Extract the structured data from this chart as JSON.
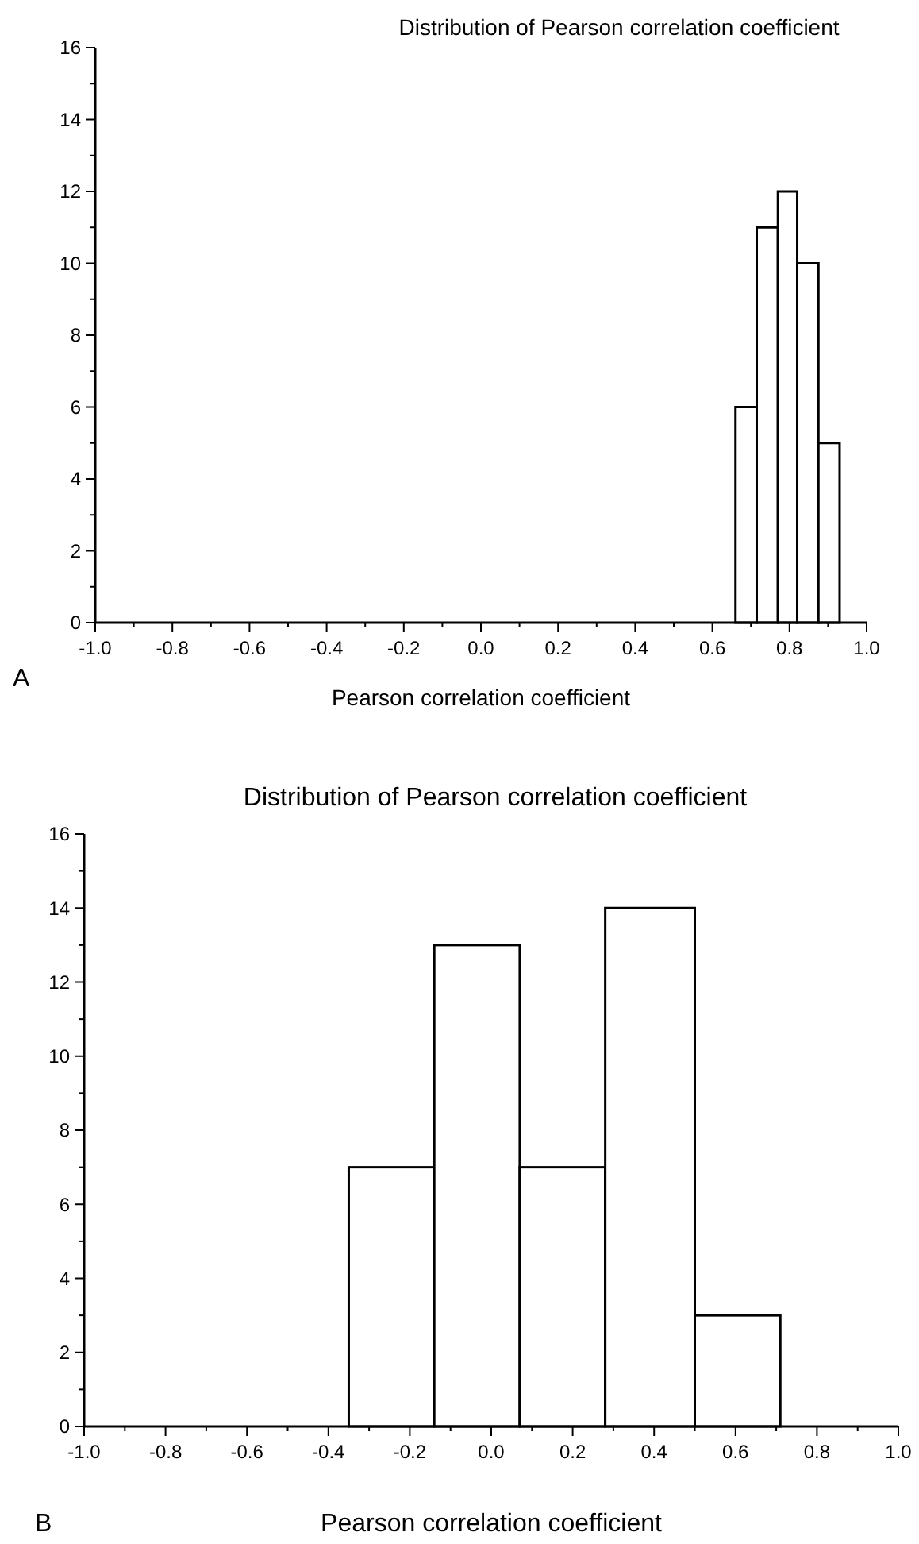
{
  "chart_data": [
    {
      "type": "histogram",
      "title": "Distribution of Pearson correlation coefficient",
      "xlabel": "Pearson correlation coefficient",
      "annotations": [
        "A"
      ],
      "bins": [
        0.66,
        0.715,
        0.77,
        0.82,
        0.875,
        0.93
      ],
      "values": [
        6,
        11,
        12,
        10,
        5
      ],
      "color": "#ffffff",
      "grid": false,
      "xlim": [
        -1,
        1
      ],
      "xticks": [
        {
          "value": -1,
          "label": "-1.0"
        },
        {
          "value": -0.9,
          "label": null
        },
        {
          "value": -0.8,
          "label": "-0.8"
        },
        {
          "value": -0.7,
          "label": null
        },
        {
          "value": -0.6,
          "label": "-0.6"
        },
        {
          "value": -0.5,
          "label": null
        },
        {
          "value": -0.4,
          "label": "-0.4"
        },
        {
          "value": -0.3,
          "label": null
        },
        {
          "value": -0.2,
          "label": "-0.2"
        },
        {
          "value": -0.1,
          "label": null
        },
        {
          "value": 0,
          "label": "0.0"
        },
        {
          "value": 0.1,
          "label": null
        },
        {
          "value": 0.2,
          "label": "0.2"
        },
        {
          "value": 0.3,
          "label": null
        },
        {
          "value": 0.4,
          "label": "0.4"
        },
        {
          "value": 0.5,
          "label": null
        },
        {
          "value": 0.6,
          "label": "0.6"
        },
        {
          "value": 0.7,
          "label": null
        },
        {
          "value": 0.8,
          "label": "0.8"
        },
        {
          "value": 0.9,
          "label": null
        },
        {
          "value": 1,
          "label": "1.0"
        }
      ],
      "ylim": [
        0,
        16
      ],
      "yticks": [
        0,
        {
          "value": 1,
          "label": null
        },
        2,
        {
          "value": 3,
          "label": null
        },
        4,
        {
          "value": 5,
          "label": null
        },
        6,
        {
          "value": 7,
          "label": null
        },
        8,
        {
          "value": 9,
          "label": null
        },
        10,
        {
          "value": 11,
          "label": null
        },
        12,
        {
          "value": 13,
          "label": null
        },
        14,
        {
          "value": 15,
          "label": null
        },
        16
      ]
    },
    {
      "type": "histogram",
      "title": "Distribution of Pearson correlation coefficient",
      "xlabel": "Pearson correlation coefficient",
      "annotations": [
        "B"
      ],
      "bins": [
        -0.35,
        -0.14,
        0.07,
        0.28,
        0.5,
        0.71
      ],
      "values": [
        7,
        13,
        7,
        14,
        3
      ],
      "color": "#ffffff",
      "grid": false,
      "xlim": [
        -1,
        1
      ],
      "xticks": [
        {
          "value": -1,
          "label": "-1.0"
        },
        {
          "value": -0.9,
          "label": null
        },
        {
          "value": -0.8,
          "label": "-0.8"
        },
        {
          "value": -0.7,
          "label": null
        },
        {
          "value": -0.6,
          "label": "-0.6"
        },
        {
          "value": -0.5,
          "label": null
        },
        {
          "value": -0.4,
          "label": "-0.4"
        },
        {
          "value": -0.3,
          "label": null
        },
        {
          "value": -0.2,
          "label": "-0.2"
        },
        {
          "value": -0.1,
          "label": null
        },
        {
          "value": 0,
          "label": "0.0"
        },
        {
          "value": 0.1,
          "label": null
        },
        {
          "value": 0.2,
          "label": "0.2"
        },
        {
          "value": 0.3,
          "label": null
        },
        {
          "value": 0.4,
          "label": "0.4"
        },
        {
          "value": 0.5,
          "label": null
        },
        {
          "value": 0.6,
          "label": "0.6"
        },
        {
          "value": 0.7,
          "label": null
        },
        {
          "value": 0.8,
          "label": "0.8"
        },
        {
          "value": 0.9,
          "label": null
        },
        {
          "value": 1,
          "label": "1.0"
        }
      ],
      "ylim": [
        0,
        16
      ],
      "yticks": [
        0,
        {
          "value": 1,
          "label": null
        },
        2,
        {
          "value": 3,
          "label": null
        },
        4,
        {
          "value": 5,
          "label": null
        },
        6,
        {
          "value": 7,
          "label": null
        },
        8,
        {
          "value": 9,
          "label": null
        },
        10,
        {
          "value": 11,
          "label": null
        },
        12,
        {
          "value": 13,
          "label": null
        },
        14,
        {
          "value": 15,
          "label": null
        },
        16
      ]
    }
  ]
}
